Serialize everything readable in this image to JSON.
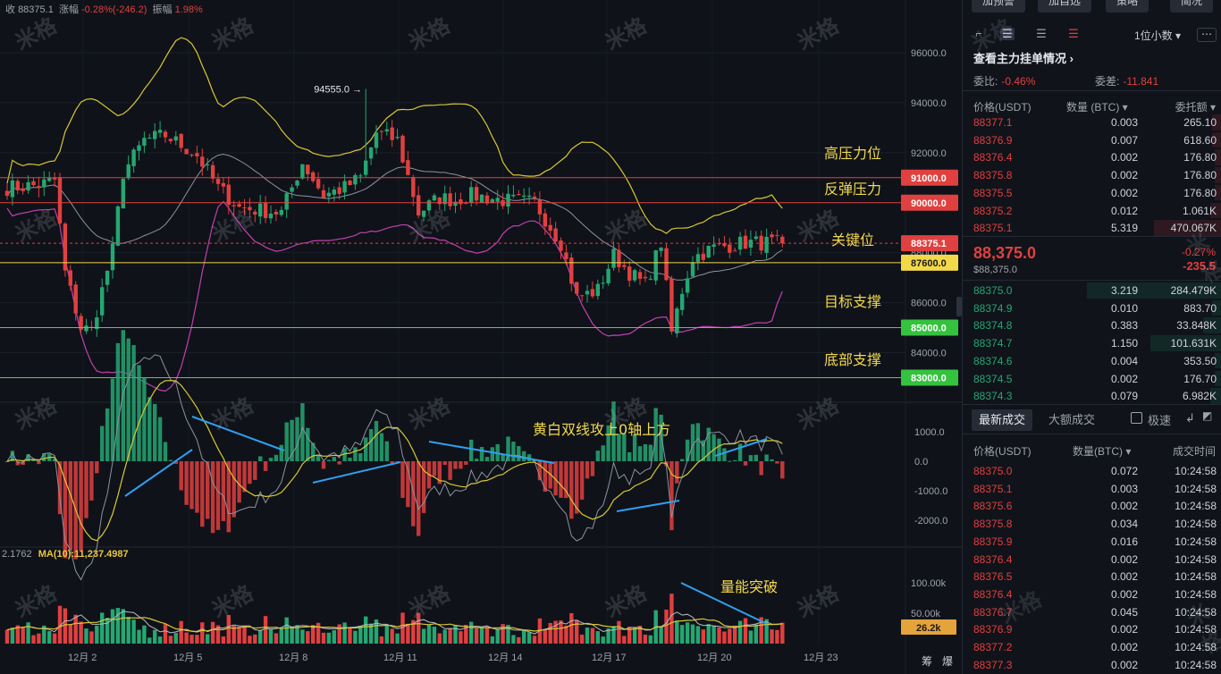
{
  "header": {
    "close_label": "收",
    "close_value": "88375.1",
    "change_label": "涨幅",
    "change_value": "-0.28%(-246.2)",
    "amplitude_label": "振幅",
    "amplitude_value": "1.98%"
  },
  "watermark": "米格",
  "chart_data": {
    "type": "candlestick",
    "main": {
      "y_ticks": [
        "96000.0",
        "94000.0",
        "92000.0",
        "90000.0",
        "88000.0",
        "86000.0",
        "84000.0"
      ],
      "x_ticks": [
        "12月 2",
        "12月 5",
        "12月 8",
        "12月 11",
        "12月 14",
        "12月 17",
        "12月 20",
        "12月 23"
      ],
      "high_marker": "94555.0",
      "last_price_tag": "88375.1",
      "levels": [
        {
          "label": "高压力位",
          "price": "91000.0",
          "color": "#e0403f"
        },
        {
          "label": "反弹压力",
          "price": "90000.0",
          "color": "#e0403f"
        },
        {
          "label": "关键位",
          "price": "87600.0",
          "color": "#f2d94a"
        },
        {
          "label": "目标支撑",
          "price": "85000.0",
          "color": "#5fcf45"
        },
        {
          "label": "底部支撑",
          "price": "83000.0",
          "color": "#5fcf45"
        }
      ],
      "series": [
        {
          "name": "candles",
          "color_up": "#25a772",
          "color_down": "#e0403f"
        },
        {
          "name": "BOLL upper",
          "color": "#d8c832"
        },
        {
          "name": "BOLL middle",
          "color": "#8e93a0"
        },
        {
          "name": "BOLL lower",
          "color": "#c040b0"
        }
      ]
    },
    "macd": {
      "y_ticks": [
        "1000.0",
        "0.0",
        "-1000.0",
        "-2000.0"
      ],
      "annotation": "黄白双线攻上0轴上方"
    },
    "volume": {
      "y_ticks": [
        "100.00k",
        "50.00k"
      ],
      "volume_tag": "26.2k",
      "annotation": "量能突破",
      "ma_legend": {
        "ma5_value": "2.1762",
        "ma10_label": "MA(10):11,237.4987"
      }
    }
  },
  "bottom_controls": {
    "chips": "筹",
    "burst": "爆"
  },
  "panel": {
    "top_buttons": [
      "加预警",
      "加自选",
      "策略",
      "简况"
    ],
    "decimals": "1位小数",
    "main_orders_title": "查看主力挂单情况",
    "wei_bi_label": "委比:",
    "wei_bi_value": "-0.46%",
    "wei_cha_label": "委差:",
    "wei_cha_value": "-11.841",
    "book_headers": [
      "价格(USDT)",
      "数量 (BTC)",
      "委托额"
    ],
    "asks": [
      {
        "price": "88377.1",
        "qty": "0.003",
        "amount": "265.10",
        "depth": 0.05
      },
      {
        "price": "88376.9",
        "qty": "0.007",
        "amount": "618.60",
        "depth": 0.05
      },
      {
        "price": "88376.4",
        "qty": "0.002",
        "amount": "176.80",
        "depth": 0.04
      },
      {
        "price": "88375.8",
        "qty": "0.002",
        "amount": "176.80",
        "depth": 0.04
      },
      {
        "price": "88375.5",
        "qty": "0.002",
        "amount": "176.80",
        "depth": 0.04
      },
      {
        "price": "88375.2",
        "qty": "0.012",
        "amount": "1.061K",
        "depth": 0.06
      },
      {
        "price": "88375.1",
        "qty": "5.319",
        "amount": "470.067K",
        "depth": 0.36
      }
    ],
    "last_price": "88,375.0",
    "last_price_usd": "$88,375.0",
    "last_change_pct": "-0.27%",
    "last_change": "-235.5",
    "bids": [
      {
        "price": "88375.0",
        "qty": "3.219",
        "amount": "284.479K",
        "depth": 0.72
      },
      {
        "price": "88374.9",
        "qty": "0.010",
        "amount": "883.70",
        "depth": 0.05
      },
      {
        "price": "88374.8",
        "qty": "0.383",
        "amount": "33.848K",
        "depth": 0.1
      },
      {
        "price": "88374.7",
        "qty": "1.150",
        "amount": "101.631K",
        "depth": 0.38
      },
      {
        "price": "88374.6",
        "qty": "0.004",
        "amount": "353.50",
        "depth": 0.04
      },
      {
        "price": "88374.5",
        "qty": "0.002",
        "amount": "176.70",
        "depth": 0.04
      },
      {
        "price": "88374.3",
        "qty": "0.079",
        "amount": "6.982K",
        "depth": 0.06
      }
    ],
    "trade_tabs": [
      "最新成交",
      "大额成交"
    ],
    "fast_label": "极速",
    "trade_headers": [
      "价格(USDT)",
      "数量(BTC)",
      "成交时间"
    ],
    "trades": [
      {
        "price": "88375.0",
        "qty": "0.072",
        "time": "10:24:58"
      },
      {
        "price": "88375.1",
        "qty": "0.003",
        "time": "10:24:58"
      },
      {
        "price": "88375.6",
        "qty": "0.002",
        "time": "10:24:58"
      },
      {
        "price": "88375.8",
        "qty": "0.034",
        "time": "10:24:58"
      },
      {
        "price": "88375.9",
        "qty": "0.016",
        "time": "10:24:58"
      },
      {
        "price": "88376.4",
        "qty": "0.002",
        "time": "10:24:58"
      },
      {
        "price": "88376.5",
        "qty": "0.002",
        "time": "10:24:58"
      },
      {
        "price": "88376.4",
        "qty": "0.002",
        "time": "10:24:58"
      },
      {
        "price": "88376.7",
        "qty": "0.045",
        "time": "10:24:58"
      },
      {
        "price": "88376.9",
        "qty": "0.002",
        "time": "10:24:58"
      },
      {
        "price": "88377.2",
        "qty": "0.002",
        "time": "10:24:58"
      },
      {
        "price": "88377.3",
        "qty": "0.002",
        "time": "10:24:58"
      }
    ]
  }
}
